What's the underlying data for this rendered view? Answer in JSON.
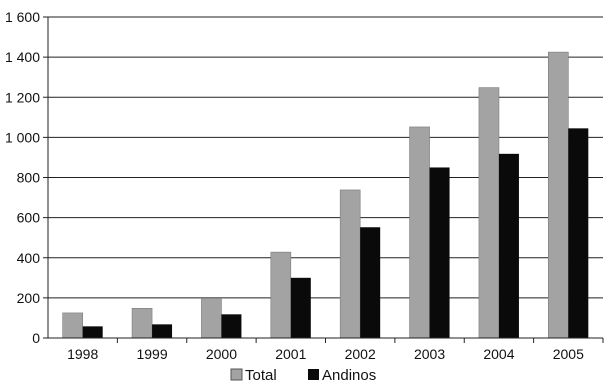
{
  "chart_data": {
    "type": "bar",
    "title": "",
    "xlabel": "",
    "ylabel": "",
    "categories": [
      "1998",
      "1999",
      "2000",
      "2001",
      "2002",
      "2003",
      "2004",
      "2005"
    ],
    "series": [
      {
        "name": "Total",
        "color": "#a3a3a3",
        "values": [
          125,
          148,
          198,
          428,
          738,
          1052,
          1248,
          1425
        ]
      },
      {
        "name": "Andinos",
        "color": "#0a0a0a",
        "values": [
          58,
          68,
          118,
          300,
          552,
          850,
          918,
          1045
        ]
      }
    ],
    "ylim": [
      0,
      1600
    ],
    "yticks": [
      0,
      200,
      400,
      600,
      800,
      1000,
      1200,
      1400,
      1600
    ],
    "ytick_labels": [
      "0",
      "200",
      "400",
      "600",
      "800",
      "1 000",
      "1 200",
      "1 400",
      "1 600"
    ],
    "grid": true,
    "legend_position": "bottom-center"
  }
}
